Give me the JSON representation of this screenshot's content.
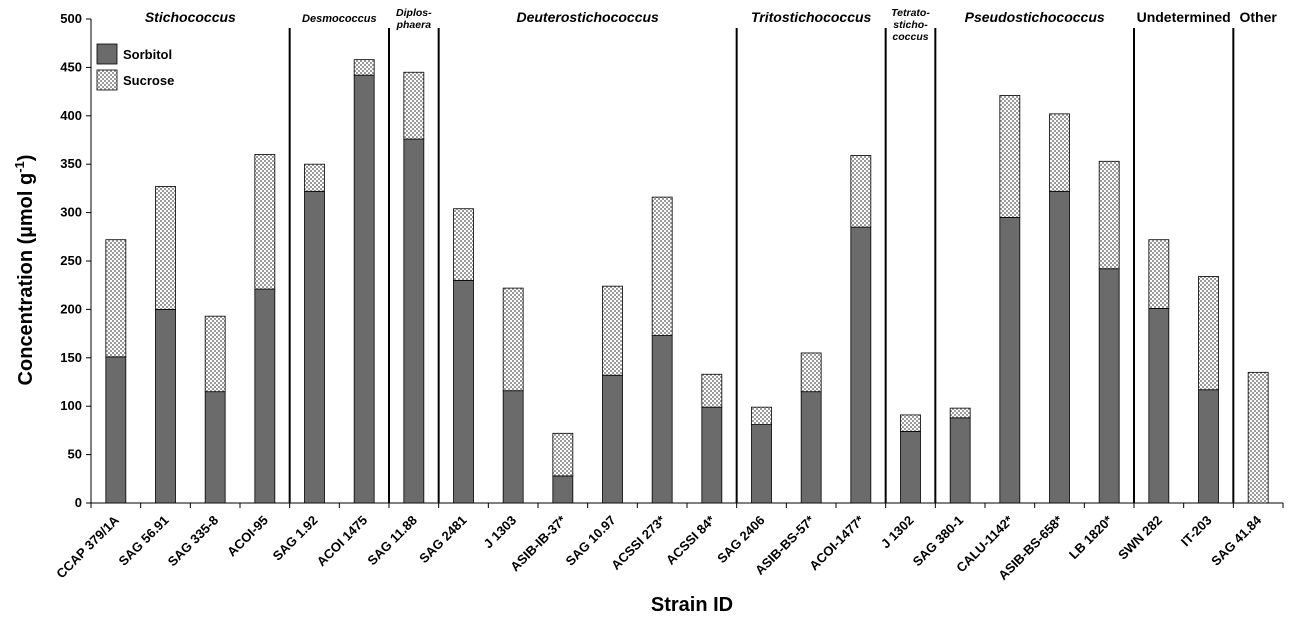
{
  "chart_data": {
    "type": "bar",
    "stacked": true,
    "xlabel": "Strain ID",
    "ylabel": "Concentration (µmol g",
    "ylabel_sup": "-1",
    "ylabel_close": ")",
    "ylim": [
      0,
      500
    ],
    "yticks": [
      0,
      50,
      100,
      150,
      200,
      250,
      300,
      350,
      400,
      450,
      500
    ],
    "grid": false,
    "legend_position": "top-left",
    "categories": [
      "CCAP 379/1A",
      "SAG 56.91",
      "SAG 335-8",
      "ACOI-95",
      "SAG 1.92",
      "ACOI 1475",
      "SAG 11.88",
      "SAG 2481",
      "J 1303",
      "ASIB-IB-37*",
      "SAG 10.97",
      "ACSSI 273*",
      "ACSSI 84*",
      "SAG 2406",
      "ASIB-BS-57*",
      "ACOI-1477*",
      "J 1302",
      "SAG 380-1",
      "CALU-1142*",
      "ASIB-BS-658*",
      "LB 1820*",
      "SWN 282",
      "IT-203",
      "SAG 41.84"
    ],
    "series": [
      {
        "name": "Sorbitol",
        "color": "#6b6b6b",
        "values": [
          151,
          200,
          115,
          221,
          322,
          442,
          376,
          230,
          116,
          28,
          132,
          173,
          99,
          81,
          115,
          285,
          74,
          88,
          295,
          322,
          242,
          201,
          117,
          0
        ]
      },
      {
        "name": "Sucrose",
        "color": "#dcdcdc",
        "pattern": "crosshatch",
        "values": [
          121,
          127,
          78,
          139,
          28,
          16,
          69,
          74,
          106,
          44,
          92,
          143,
          34,
          18,
          40,
          74,
          17,
          10,
          126,
          80,
          111,
          71,
          117,
          135
        ]
      }
    ],
    "groups": [
      {
        "label": "Stichococcus",
        "italic": true,
        "lines": [
          "Stichococcus"
        ],
        "start": 0,
        "end": 3
      },
      {
        "label": "Desmococcus",
        "italic": true,
        "lines": [
          "Desmococcus"
        ],
        "start": 4,
        "end": 5
      },
      {
        "label": "Diplosphaera",
        "italic": true,
        "lines": [
          "Diplos-",
          "phaera"
        ],
        "start": 6,
        "end": 6
      },
      {
        "label": "Deuterostichococcus",
        "italic": true,
        "lines": [
          "Deuterostichococcus"
        ],
        "start": 7,
        "end": 12
      },
      {
        "label": "Tritostichococcus",
        "italic": true,
        "lines": [
          "Tritostichococcus"
        ],
        "start": 13,
        "end": 15
      },
      {
        "label": "Tetratostichococcus",
        "italic": true,
        "lines": [
          "Tetrato-",
          "sticho-",
          "coccus"
        ],
        "start": 16,
        "end": 16
      },
      {
        "label": "Pseudostichococcus",
        "italic": true,
        "lines": [
          "Pseudostichococcus"
        ],
        "start": 17,
        "end": 20
      },
      {
        "label": "Undetermined",
        "italic": false,
        "lines": [
          "Undetermined"
        ],
        "start": 21,
        "end": 22
      },
      {
        "label": "Other",
        "italic": false,
        "lines": [
          "Other"
        ],
        "start": 23,
        "end": 23
      }
    ]
  }
}
